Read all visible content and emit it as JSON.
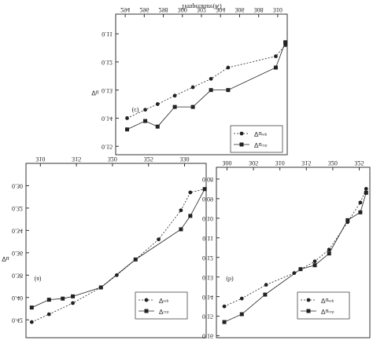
{
  "chart_data": [
    {
      "type": "line",
      "title": "(c)",
      "xlabel": "Temperature(K)",
      "ylabel": "∇u",
      "xlim": [
        293,
        311
      ],
      "xticks": [
        294,
        296,
        298,
        300,
        302,
        304,
        306,
        308,
        310
      ],
      "ylim": [
        0.103,
        0.153
      ],
      "yticks": [
        0.11,
        0.12,
        0.13,
        0.14,
        0.15
      ],
      "series": [
        {
          "name": "∇uᵉˣᵖ",
          "color": "#222222",
          "marker": "circle",
          "dashed": true,
          "x": [
            294.2,
            296.1,
            297.4,
            299.2,
            301.1,
            303.0,
            304.8,
            309.8,
            310.8
          ],
          "values": [
            0.14,
            0.137,
            0.135,
            0.132,
            0.129,
            0.126,
            0.122,
            0.118,
            0.114
          ]
        },
        {
          "name": "∇uᶜᵃˡᶜ",
          "color": "#222222",
          "marker": "square",
          "dashed": false,
          "x": [
            294.2,
            296.1,
            297.4,
            299.2,
            301.1,
            303.0,
            304.8,
            309.8,
            310.8
          ],
          "values": [
            0.144,
            0.141,
            0.143,
            0.136,
            0.136,
            0.13,
            0.13,
            0.122,
            0.113
          ]
        }
      ]
    },
    {
      "type": "line",
      "title": "(a)",
      "ylabel": "∇u",
      "xlim": [
        308,
        333
      ],
      "xticks": [
        310,
        315,
        320,
        325,
        330
      ],
      "ylim": [
        0.28,
        0.436
      ],
      "yticks": [
        {
          "value": 0.3,
          "label": "0.30"
        },
        0.32,
        0.34,
        0.36,
        0.38,
        {
          "value": 0.4,
          "label": "0.40"
        },
        0.42
      ],
      "series": [
        {
          "name": "∇ᵉˣᵖ",
          "color": "#222222",
          "marker": "circle",
          "dashed": true,
          "x": [
            308.8,
            311.2,
            314.5,
            318.4,
            320.6,
            323.2,
            326.4,
            329.5,
            330.8,
            332.8
          ],
          "values": [
            0.422,
            0.415,
            0.405,
            0.391,
            0.38,
            0.366,
            0.348,
            0.322,
            0.306,
            0.303
          ]
        },
        {
          "name": "∇ᶜᵃˡᶜ",
          "color": "#222222",
          "marker": "square",
          "dashed": false,
          "x": [
            308.8,
            311.2,
            313.1,
            314.5,
            318.4,
            323.2,
            329.5,
            330.8,
            332.8
          ],
          "values": [
            0.409,
            0.402,
            0.401,
            0.399,
            0.391,
            0.366,
            0.339,
            0.327,
            0.303
          ]
        }
      ]
    },
    {
      "type": "line",
      "title": "(b)",
      "xlim": [
        298,
        327
      ],
      "xticks": [
        300,
        305,
        310,
        315,
        320,
        325
      ],
      "ylim": [
        0.074,
        0.161
      ],
      "yticks": [
        0.08,
        0.09,
        {
          "value": 0.1,
          "label": "0.10"
        },
        0.11,
        0.12,
        0.13,
        0.14,
        0.15,
        0.16
      ],
      "series": [
        {
          "name": "∇uᵉˣᵖ",
          "color": "#222222",
          "marker": "circle",
          "dashed": true,
          "x": [
            299.5,
            302.8,
            307.4,
            312.7,
            316.6,
            319.3,
            322.8,
            325.2,
            326.3
          ],
          "values": [
            0.145,
            0.141,
            0.134,
            0.128,
            0.122,
            0.116,
            0.102,
            0.092,
            0.085
          ]
        },
        {
          "name": "∇uᶜᵃˡᶜ",
          "color": "#222222",
          "marker": "square",
          "dashed": false,
          "x": [
            299.5,
            302.8,
            307.2,
            313.9,
            316.6,
            319.3,
            322.8,
            325.2,
            326.3
          ],
          "values": [
            0.153,
            0.149,
            0.139,
            0.126,
            0.124,
            0.118,
            0.101,
            0.097,
            0.087
          ]
        }
      ]
    }
  ]
}
